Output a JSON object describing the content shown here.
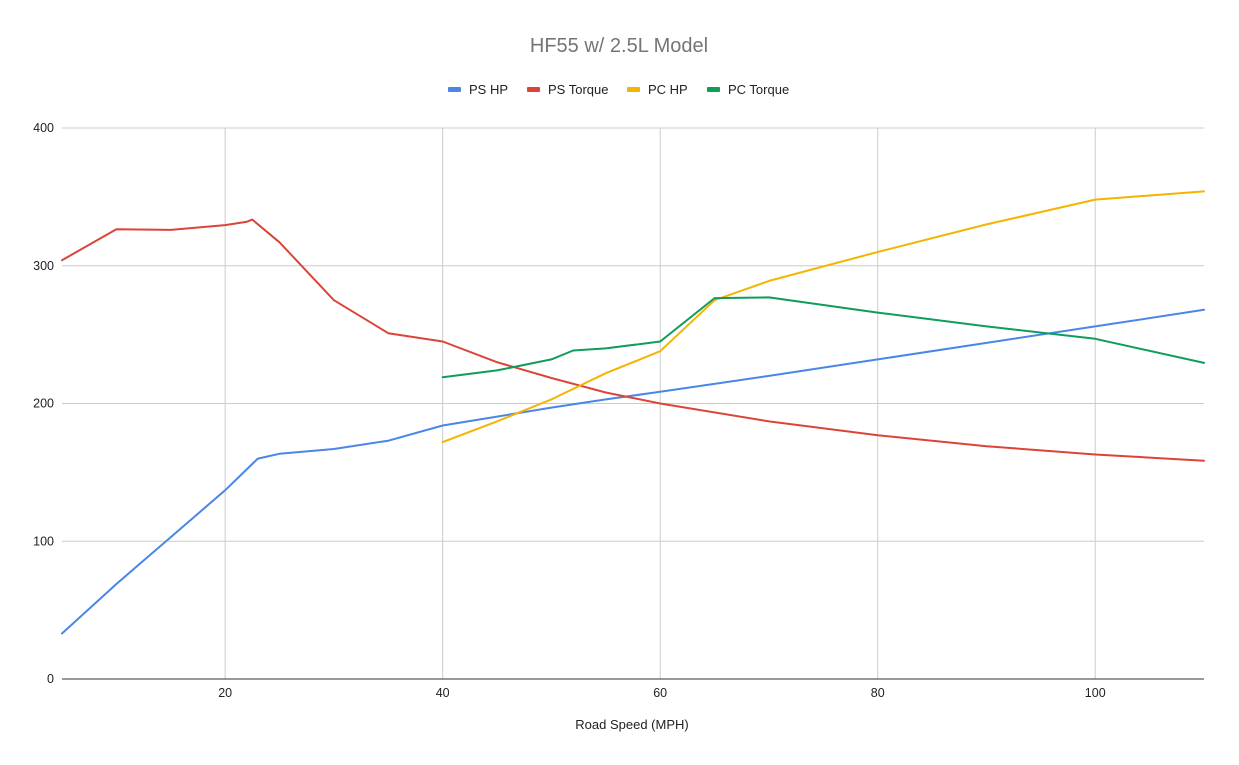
{
  "chart_data": {
    "type": "line",
    "title": "HF55 w/ 2.5L Model",
    "xlabel": "Road Speed (MPH)",
    "ylabel": "",
    "xlim": [
      5,
      110
    ],
    "ylim": [
      0,
      400
    ],
    "xticks": [
      20,
      40,
      60,
      80,
      100
    ],
    "yticks": [
      0,
      100,
      200,
      300,
      400
    ],
    "grid": true,
    "legend_position": "top",
    "series": [
      {
        "name": "PS HP",
        "color": "#4a86e8",
        "points": [
          [
            5,
            33
          ],
          [
            10,
            69
          ],
          [
            15,
            103
          ],
          [
            20,
            137
          ],
          [
            23,
            160
          ],
          [
            25,
            163.5
          ],
          [
            30,
            167
          ],
          [
            35,
            173
          ],
          [
            40,
            184
          ],
          [
            45,
            190.5
          ],
          [
            50,
            197
          ],
          [
            55,
            203
          ],
          [
            60,
            208.5
          ],
          [
            70,
            220
          ],
          [
            80,
            232
          ],
          [
            90,
            244
          ],
          [
            100,
            256
          ],
          [
            110,
            268
          ]
        ]
      },
      {
        "name": "PS Torque",
        "color": "#db4437",
        "points": [
          [
            5,
            304
          ],
          [
            10,
            326.5
          ],
          [
            15,
            326
          ],
          [
            20,
            329.5
          ],
          [
            22,
            332
          ],
          [
            22.5,
            333.5
          ],
          [
            25,
            317
          ],
          [
            30,
            275
          ],
          [
            35,
            251
          ],
          [
            40,
            245
          ],
          [
            45,
            230
          ],
          [
            50,
            218.5
          ],
          [
            55,
            208
          ],
          [
            60,
            200
          ],
          [
            70,
            187
          ],
          [
            80,
            177
          ],
          [
            90,
            169
          ],
          [
            100,
            163
          ],
          [
            110,
            158.5
          ]
        ]
      },
      {
        "name": "PC HP",
        "color": "#f4b400",
        "points": [
          [
            40,
            172
          ],
          [
            45,
            187
          ],
          [
            50,
            203
          ],
          [
            55,
            222
          ],
          [
            60,
            238
          ],
          [
            65,
            275
          ],
          [
            70,
            289
          ],
          [
            80,
            310
          ],
          [
            90,
            330
          ],
          [
            100,
            348
          ],
          [
            110,
            354
          ]
        ]
      },
      {
        "name": "PC Torque",
        "color": "#0f9d58",
        "points": [
          [
            40,
            219
          ],
          [
            45,
            224
          ],
          [
            50,
            232
          ],
          [
            52,
            238.5
          ],
          [
            55,
            240
          ],
          [
            60,
            245
          ],
          [
            65,
            276.5
          ],
          [
            70,
            277
          ],
          [
            80,
            266
          ],
          [
            90,
            256
          ],
          [
            100,
            247
          ],
          [
            110,
            229.5
          ]
        ]
      }
    ]
  }
}
